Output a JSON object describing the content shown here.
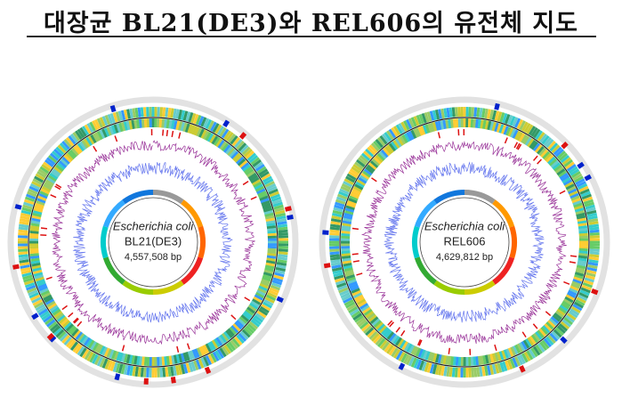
{
  "header": {
    "title": "대장균 BL21(DE3)와 REL606의 유전체 지도"
  },
  "maps": [
    {
      "organism": "Escherichia coli",
      "strain": "BL21(DE3)",
      "size": "4,557,508 bp"
    },
    {
      "organism": "Escherichia coli",
      "strain": "REL606",
      "size": "4,629,812 bp"
    }
  ]
}
